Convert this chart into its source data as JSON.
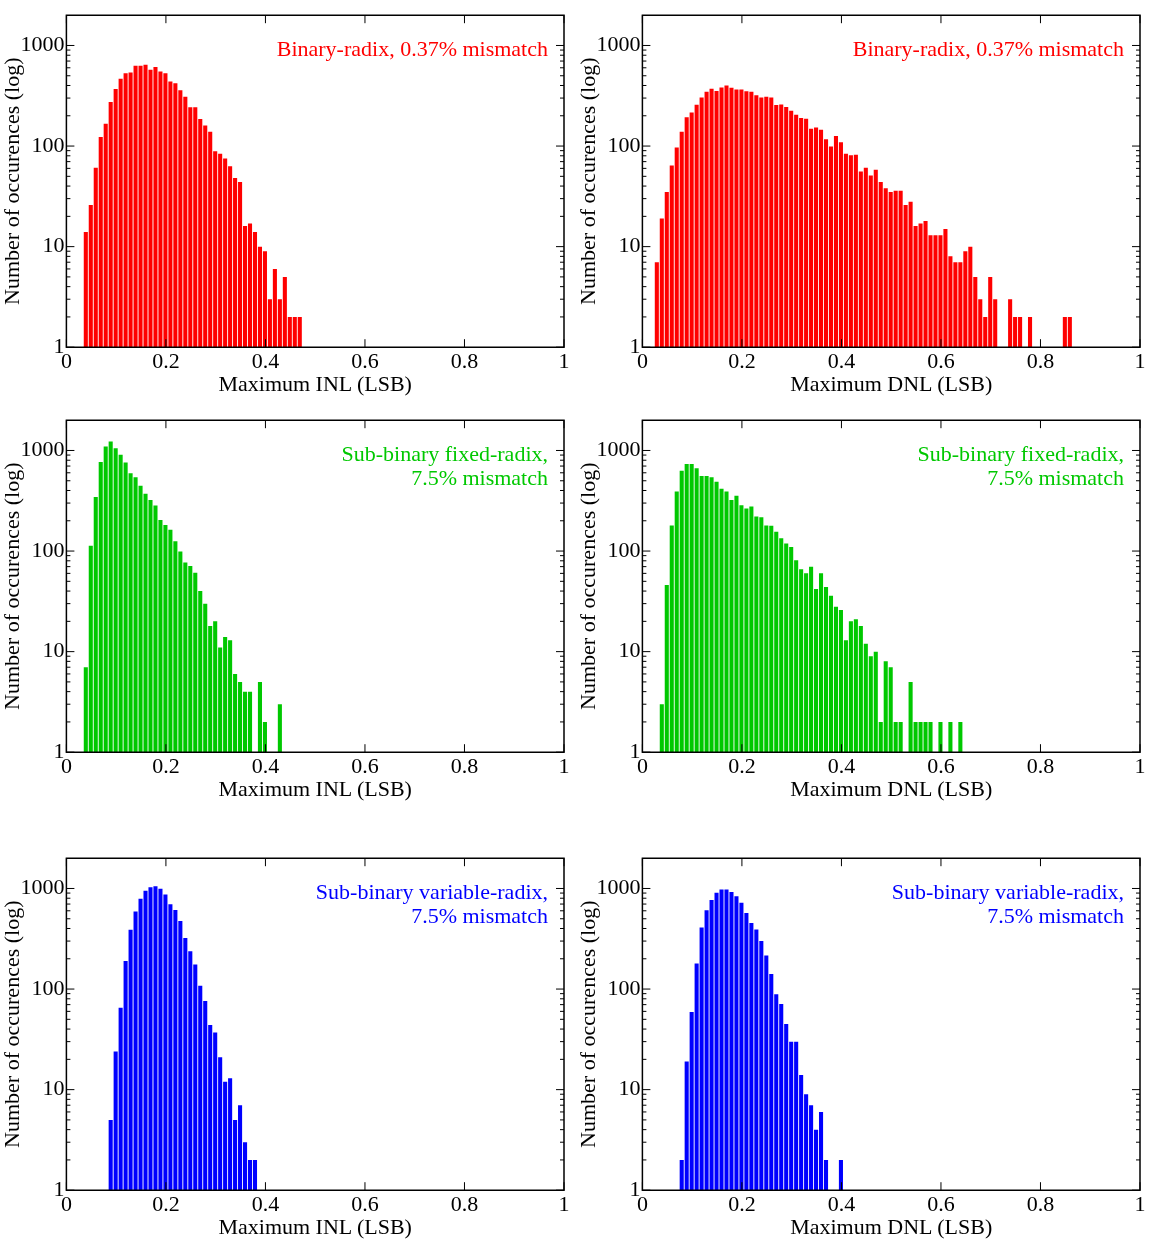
{
  "chart_data": [
    {
      "type": "histogram",
      "color": "#ff0000",
      "xlabel": "Maximum INL (LSB)",
      "ylabel": "Number of occurences (log)",
      "log": true,
      "xlim": [
        0,
        1
      ],
      "xticks": [
        0,
        0.2,
        0.4,
        0.6,
        0.8,
        1
      ],
      "ylim": [
        1,
        2000
      ],
      "yticks": [
        1,
        {
          "value": 2,
          "label": null
        },
        {
          "value": 3,
          "label": null
        },
        {
          "value": 4,
          "label": null
        },
        {
          "value": 5,
          "label": null
        },
        {
          "value": 6,
          "label": null
        },
        {
          "value": 7,
          "label": null
        },
        {
          "value": 8,
          "label": null
        },
        {
          "value": 9,
          "label": null
        },
        10,
        {
          "value": 20,
          "label": null
        },
        {
          "value": 30,
          "label": null
        },
        {
          "value": 40,
          "label": null
        },
        {
          "value": 50,
          "label": null
        },
        {
          "value": 60,
          "label": null
        },
        {
          "value": 70,
          "label": null
        },
        {
          "value": 80,
          "label": null
        },
        {
          "value": 90,
          "label": null
        },
        100,
        {
          "value": 200,
          "label": null
        },
        {
          "value": 300,
          "label": null
        },
        {
          "value": 400,
          "label": null
        },
        {
          "value": 500,
          "label": null
        },
        {
          "value": 600,
          "label": null
        },
        {
          "value": 700,
          "label": null
        },
        {
          "value": 800,
          "label": null
        },
        {
          "value": 900,
          "label": null
        },
        1000
      ],
      "annotations": [
        "Binary-radix, 0.37% mismatch"
      ],
      "bins": [
        0.034,
        0.044,
        0.054,
        0.064,
        0.074,
        0.084,
        0.094,
        0.104,
        0.114,
        0.124,
        0.134,
        0.144,
        0.154,
        0.164,
        0.174,
        0.184,
        0.194,
        0.204,
        0.214,
        0.224,
        0.234,
        0.244,
        0.254,
        0.264,
        0.274,
        0.284,
        0.294,
        0.304,
        0.314,
        0.324,
        0.334,
        0.344,
        0.354,
        0.364,
        0.374,
        0.384,
        0.394,
        0.404,
        0.414,
        0.424,
        0.434,
        0.444,
        0.454,
        0.464,
        0.474
      ],
      "values": [
        14,
        26,
        61,
        123,
        167,
        274,
        369,
        466,
        530,
        539,
        630,
        630,
        643,
        574,
        612,
        552,
        530,
        438,
        421,
        358,
        310,
        243,
        243,
        186,
        160,
        139,
        89,
        84,
        75,
        63,
        48,
        44,
        16,
        17,
        14,
        10,
        9,
        3,
        6,
        3,
        5,
        2,
        2,
        2
      ]
    },
    {
      "type": "histogram",
      "color": "#ff0000",
      "xlabel": "Maximum DNL (LSB)",
      "ylabel": "Number of occurences (log)",
      "log": true,
      "xlim": [
        0,
        1
      ],
      "xticks": [
        0,
        0.2,
        0.4,
        0.6,
        0.8,
        1
      ],
      "ylim": [
        1,
        2000
      ],
      "yticks": [
        1,
        {
          "value": 2,
          "label": null
        },
        {
          "value": 3,
          "label": null
        },
        {
          "value": 4,
          "label": null
        },
        {
          "value": 5,
          "label": null
        },
        {
          "value": 6,
          "label": null
        },
        {
          "value": 7,
          "label": null
        },
        {
          "value": 8,
          "label": null
        },
        {
          "value": 9,
          "label": null
        },
        10,
        {
          "value": 20,
          "label": null
        },
        {
          "value": 30,
          "label": null
        },
        {
          "value": 40,
          "label": null
        },
        {
          "value": 50,
          "label": null
        },
        {
          "value": 60,
          "label": null
        },
        {
          "value": 70,
          "label": null
        },
        {
          "value": 80,
          "label": null
        },
        {
          "value": 90,
          "label": null
        },
        100,
        {
          "value": 200,
          "label": null
        },
        {
          "value": 300,
          "label": null
        },
        {
          "value": 400,
          "label": null
        },
        {
          "value": 500,
          "label": null
        },
        {
          "value": 600,
          "label": null
        },
        {
          "value": 700,
          "label": null
        },
        {
          "value": 800,
          "label": null
        },
        {
          "value": 900,
          "label": null
        },
        1000
      ],
      "annotations": [
        "Binary-radix, 0.37% mismatch"
      ],
      "bins": [
        0.024,
        0.034,
        0.044,
        0.054,
        0.064,
        0.074,
        0.084,
        0.094,
        0.104,
        0.114,
        0.124,
        0.134,
        0.144,
        0.154,
        0.164,
        0.174,
        0.184,
        0.194,
        0.204,
        0.214,
        0.224,
        0.234,
        0.244,
        0.254,
        0.264,
        0.274,
        0.284,
        0.294,
        0.304,
        0.314,
        0.324,
        0.334,
        0.344,
        0.354,
        0.364,
        0.374,
        0.384,
        0.394,
        0.404,
        0.414,
        0.424,
        0.434,
        0.444,
        0.454,
        0.464,
        0.474,
        0.484,
        0.494,
        0.504,
        0.514,
        0.524,
        0.534,
        0.544,
        0.554,
        0.564,
        0.574,
        0.584,
        0.594,
        0.604,
        0.614,
        0.624,
        0.634,
        0.644,
        0.654,
        0.664,
        0.674,
        0.684,
        0.694,
        0.704,
        0.714,
        0.724,
        0.734,
        0.744,
        0.754,
        0.764,
        0.774,
        0.784,
        0.794,
        0.804,
        0.814,
        0.824,
        0.834,
        0.844,
        0.854,
        0.864
      ],
      "values": [
        7,
        19,
        35,
        64,
        97,
        139,
        193,
        215,
        257,
        304,
        346,
        371,
        352,
        383,
        400,
        380,
        366,
        366,
        350,
        347,
        320,
        304,
        309,
        304,
        256,
        259,
        245,
        225,
        205,
        190,
        187,
        149,
        153,
        145,
        117,
        99,
        126,
        109,
        84,
        81,
        82,
        56,
        61,
        51,
        58,
        44,
        38,
        35,
        36,
        36,
        26,
        28,
        16,
        17,
        18,
        13,
        13,
        13,
        15,
        8,
        7,
        7,
        9,
        10,
        5,
        3,
        2,
        5,
        3,
        null,
        null,
        3,
        2,
        2,
        null,
        2,
        null,
        null,
        null,
        null,
        null,
        null,
        2,
        2
      ]
    },
    {
      "type": "histogram",
      "color": "#00c800",
      "xlabel": "Maximum INL (LSB)",
      "ylabel": "Number of occurences (log)",
      "log": true,
      "xlim": [
        0,
        1
      ],
      "xticks": [
        0,
        0.2,
        0.4,
        0.6,
        0.8,
        1
      ],
      "ylim": [
        1,
        2000
      ],
      "yticks": [
        1,
        {
          "value": 2,
          "label": null
        },
        {
          "value": 3,
          "label": null
        },
        {
          "value": 4,
          "label": null
        },
        {
          "value": 5,
          "label": null
        },
        {
          "value": 6,
          "label": null
        },
        {
          "value": 7,
          "label": null
        },
        {
          "value": 8,
          "label": null
        },
        {
          "value": 9,
          "label": null
        },
        10,
        {
          "value": 20,
          "label": null
        },
        {
          "value": 30,
          "label": null
        },
        {
          "value": 40,
          "label": null
        },
        {
          "value": 50,
          "label": null
        },
        {
          "value": 60,
          "label": null
        },
        {
          "value": 70,
          "label": null
        },
        {
          "value": 80,
          "label": null
        },
        {
          "value": 90,
          "label": null
        },
        100,
        {
          "value": 200,
          "label": null
        },
        {
          "value": 300,
          "label": null
        },
        {
          "value": 400,
          "label": null
        },
        {
          "value": 500,
          "label": null
        },
        {
          "value": 600,
          "label": null
        },
        {
          "value": 700,
          "label": null
        },
        {
          "value": 800,
          "label": null
        },
        {
          "value": 900,
          "label": null
        },
        1000
      ],
      "annotations": [
        "Sub-binary fixed-radix,\n7.5% mismatch"
      ],
      "bins": [
        0.034,
        0.044,
        0.054,
        0.064,
        0.074,
        0.084,
        0.094,
        0.104,
        0.114,
        0.124,
        0.134,
        0.144,
        0.154,
        0.164,
        0.174,
        0.184,
        0.194,
        0.204,
        0.214,
        0.224,
        0.234,
        0.244,
        0.254,
        0.264,
        0.274,
        0.284,
        0.294,
        0.304,
        0.314,
        0.324,
        0.334,
        0.344,
        0.354,
        0.364,
        0.374,
        0.384,
        0.394,
        0.404,
        0.414,
        0.424,
        0.434
      ],
      "values": [
        7,
        113,
        344,
        769,
        1097,
        1225,
        1050,
        906,
        759,
        594,
        543,
        446,
        372,
        321,
        284,
        204,
        182,
        163,
        125,
        99,
        77,
        71,
        61,
        40,
        30,
        18,
        20,
        11,
        14,
        13,
        6,
        5,
        4,
        4,
        null,
        5,
        2,
        null,
        null,
        3
      ]
    },
    {
      "type": "histogram",
      "color": "#00c800",
      "xlabel": "Maximum DNL (LSB)",
      "ylabel": "Number of occurences (log)",
      "log": true,
      "xlim": [
        0,
        1
      ],
      "xticks": [
        0,
        0.2,
        0.4,
        0.6,
        0.8,
        1
      ],
      "ylim": [
        1,
        2000
      ],
      "yticks": [
        1,
        {
          "value": 2,
          "label": null
        },
        {
          "value": 3,
          "label": null
        },
        {
          "value": 4,
          "label": null
        },
        {
          "value": 5,
          "label": null
        },
        {
          "value": 6,
          "label": null
        },
        {
          "value": 7,
          "label": null
        },
        {
          "value": 8,
          "label": null
        },
        {
          "value": 9,
          "label": null
        },
        10,
        {
          "value": 20,
          "label": null
        },
        {
          "value": 30,
          "label": null
        },
        {
          "value": 40,
          "label": null
        },
        {
          "value": 50,
          "label": null
        },
        {
          "value": 60,
          "label": null
        },
        {
          "value": 70,
          "label": null
        },
        {
          "value": 80,
          "label": null
        },
        {
          "value": 90,
          "label": null
        },
        100,
        {
          "value": 200,
          "label": null
        },
        {
          "value": 300,
          "label": null
        },
        {
          "value": 400,
          "label": null
        },
        {
          "value": 500,
          "label": null
        },
        {
          "value": 600,
          "label": null
        },
        {
          "value": 700,
          "label": null
        },
        {
          "value": 800,
          "label": null
        },
        {
          "value": 900,
          "label": null
        },
        1000
      ],
      "annotations": [
        "Sub-binary fixed-radix,\n7.5% mismatch"
      ],
      "bins": [
        0.034,
        0.044,
        0.054,
        0.064,
        0.074,
        0.084,
        0.094,
        0.104,
        0.114,
        0.124,
        0.134,
        0.144,
        0.154,
        0.164,
        0.174,
        0.184,
        0.194,
        0.204,
        0.214,
        0.224,
        0.234,
        0.244,
        0.254,
        0.264,
        0.274,
        0.284,
        0.294,
        0.304,
        0.314,
        0.324,
        0.334,
        0.344,
        0.354,
        0.364,
        0.374,
        0.384,
        0.394,
        0.404,
        0.414,
        0.424,
        0.434,
        0.444,
        0.454,
        0.464,
        0.474,
        0.484,
        0.494,
        0.504,
        0.514,
        0.524,
        0.534,
        0.544,
        0.554,
        0.564,
        0.574,
        0.584,
        0.594,
        0.604,
        0.614,
        0.624,
        0.634,
        0.644
      ],
      "values": [
        3,
        46,
        180,
        392,
        628,
        733,
        733,
        667,
        558,
        558,
        542,
        490,
        417,
        392,
        321,
        355,
        285,
        265,
        277,
        220,
        217,
        180,
        178,
        156,
        134,
        119,
        110,
        81,
        66,
        60,
        70,
        42,
        60,
        44,
        36,
        28,
        26,
        13,
        20,
        21,
        18,
        12,
        9,
        10,
        2,
        8,
        7,
        2,
        2,
        null,
        5,
        2,
        2,
        2,
        2,
        null,
        2,
        null,
        2,
        null,
        2
      ]
    },
    {
      "type": "histogram",
      "color": "#0000ff",
      "xlabel": "Maximum INL (LSB)",
      "ylabel": "Number of occurences (log)",
      "log": true,
      "xlim": [
        0,
        1
      ],
      "xticks": [
        0,
        0.2,
        0.4,
        0.6,
        0.8,
        1
      ],
      "ylim": [
        1,
        2000
      ],
      "yticks": [
        1,
        {
          "value": 2,
          "label": null
        },
        {
          "value": 3,
          "label": null
        },
        {
          "value": 4,
          "label": null
        },
        {
          "value": 5,
          "label": null
        },
        {
          "value": 6,
          "label": null
        },
        {
          "value": 7,
          "label": null
        },
        {
          "value": 8,
          "label": null
        },
        {
          "value": 9,
          "label": null
        },
        10,
        {
          "value": 20,
          "label": null
        },
        {
          "value": 30,
          "label": null
        },
        {
          "value": 40,
          "label": null
        },
        {
          "value": 50,
          "label": null
        },
        {
          "value": 60,
          "label": null
        },
        {
          "value": 70,
          "label": null
        },
        {
          "value": 80,
          "label": null
        },
        {
          "value": 90,
          "label": null
        },
        100,
        {
          "value": 200,
          "label": null
        },
        {
          "value": 300,
          "label": null
        },
        {
          "value": 400,
          "label": null
        },
        {
          "value": 500,
          "label": null
        },
        {
          "value": 600,
          "label": null
        },
        {
          "value": 700,
          "label": null
        },
        {
          "value": 800,
          "label": null
        },
        {
          "value": 900,
          "label": null
        },
        1000
      ],
      "annotations": [
        "Sub-binary variable-radix,\n7.5% mismatch"
      ],
      "bins": [
        0.084,
        0.094,
        0.104,
        0.114,
        0.124,
        0.134,
        0.144,
        0.154,
        0.164,
        0.174,
        0.184,
        0.194,
        0.204,
        0.214,
        0.224,
        0.234,
        0.244,
        0.254,
        0.264,
        0.274,
        0.284,
        0.294,
        0.304,
        0.314,
        0.324,
        0.334,
        0.344,
        0.354,
        0.364,
        0.374,
        0.384
      ],
      "values": [
        5,
        24,
        65,
        190,
        389,
        590,
        789,
        950,
        1030,
        1052,
        993,
        870,
        697,
        610,
        474,
        321,
        237,
        175,
        108,
        76,
        44,
        37,
        21,
        12,
        13,
        5,
        7,
        3,
        2,
        2
      ]
    },
    {
      "type": "histogram",
      "color": "#0000ff",
      "xlabel": "Maximum DNL (LSB)",
      "ylabel": "Number of occurences (log)",
      "log": true,
      "xlim": [
        0,
        1
      ],
      "xticks": [
        0,
        0.2,
        0.4,
        0.6,
        0.8,
        1
      ],
      "ylim": [
        1,
        2000
      ],
      "yticks": [
        1,
        {
          "value": 2,
          "label": null
        },
        {
          "value": 3,
          "label": null
        },
        {
          "value": 4,
          "label": null
        },
        {
          "value": 5,
          "label": null
        },
        {
          "value": 6,
          "label": null
        },
        {
          "value": 7,
          "label": null
        },
        {
          "value": 8,
          "label": null
        },
        {
          "value": 9,
          "label": null
        },
        10,
        {
          "value": 20,
          "label": null
        },
        {
          "value": 30,
          "label": null
        },
        {
          "value": 40,
          "label": null
        },
        {
          "value": 50,
          "label": null
        },
        {
          "value": 60,
          "label": null
        },
        {
          "value": 70,
          "label": null
        },
        {
          "value": 80,
          "label": null
        },
        {
          "value": 90,
          "label": null
        },
        100,
        {
          "value": 200,
          "label": null
        },
        {
          "value": 300,
          "label": null
        },
        {
          "value": 400,
          "label": null
        },
        {
          "value": 500,
          "label": null
        },
        {
          "value": 600,
          "label": null
        },
        {
          "value": 700,
          "label": null
        },
        {
          "value": 800,
          "label": null
        },
        {
          "value": 900,
          "label": null
        },
        1000
      ],
      "annotations": [
        "Sub-binary variable-radix,\n7.5% mismatch"
      ],
      "bins": [
        0.074,
        0.084,
        0.094,
        0.104,
        0.114,
        0.124,
        0.134,
        0.144,
        0.154,
        0.164,
        0.174,
        0.184,
        0.194,
        0.204,
        0.214,
        0.224,
        0.234,
        0.244,
        0.254,
        0.264,
        0.274,
        0.284,
        0.294,
        0.304,
        0.314,
        0.324,
        0.334,
        0.344,
        0.354,
        0.364,
        0.374,
        0.384,
        0.394,
        0.404
      ],
      "values": [
        2,
        19,
        59,
        179,
        409,
        606,
        767,
        908,
        978,
        978,
        923,
        838,
        722,
        570,
        454,
        392,
        300,
        215,
        141,
        89,
        71,
        45,
        30,
        30,
        14,
        9,
        7,
        4,
        6,
        2,
        null,
        null,
        2
      ]
    }
  ]
}
